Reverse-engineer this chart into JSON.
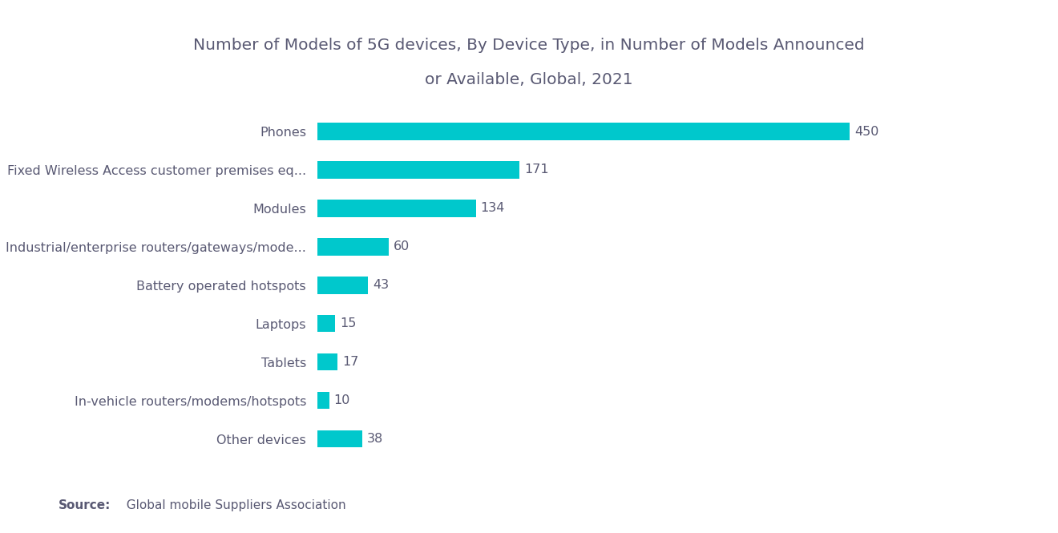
{
  "title_line1": "Number of Models of 5G devices, By Device Type, in Number of Models Announced",
  "title_line2": "or Available, Global, 2021",
  "categories": [
    "Other devices",
    "In-vehicle routers/modems/hotspots",
    "Tablets",
    "Laptops",
    "Battery operated hotspots",
    "Industrial/enterprise routers/gateways/mode...",
    "Modules",
    "Fixed Wireless Access customer premises eq...",
    "Phones"
  ],
  "values": [
    38,
    10,
    17,
    15,
    43,
    60,
    134,
    171,
    450
  ],
  "bar_color": "#00c8cc",
  "background_color": "#ffffff",
  "title_color": "#595973",
  "label_color": "#595973",
  "value_color": "#595973",
  "source_bold": "Source:",
  "source_normal": "  Global mobile Suppliers Association",
  "xlim_max": 510,
  "title_fontsize": 14.5,
  "label_fontsize": 11.5,
  "value_fontsize": 11.5,
  "source_fontsize": 11
}
